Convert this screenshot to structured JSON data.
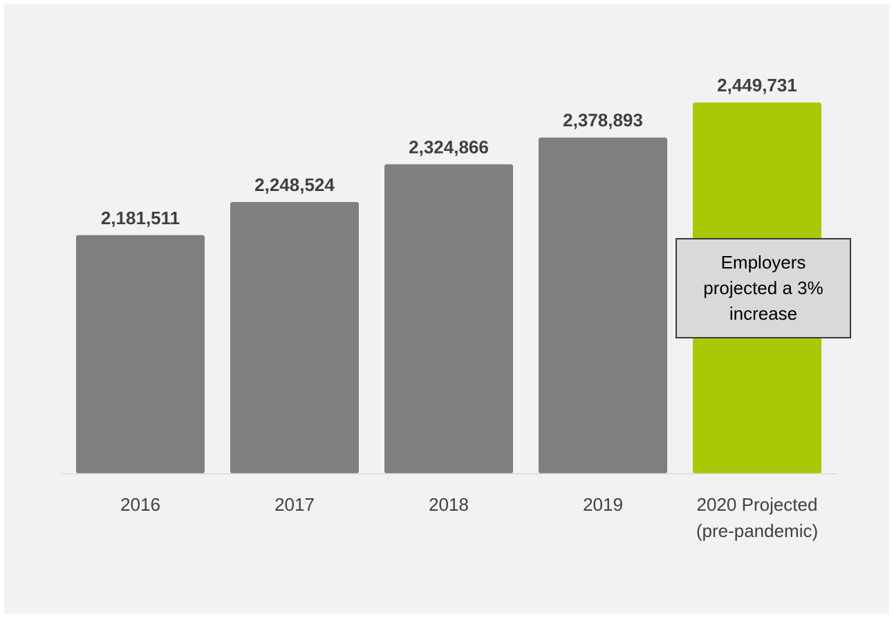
{
  "chart_data": {
    "type": "bar",
    "title": "",
    "xlabel": "",
    "ylabel": "",
    "categories": [
      "2016",
      "2017",
      "2018",
      "2019",
      "2020 Projected (pre-pandemic)"
    ],
    "category_lines": [
      [
        "2016"
      ],
      [
        "2017"
      ],
      [
        "2018"
      ],
      [
        "2019"
      ],
      [
        "2020 Projected",
        "(pre-pandemic)"
      ]
    ],
    "values": [
      2181511,
      2248524,
      2324866,
      2378893,
      2449731
    ],
    "value_labels": [
      "2,181,511",
      "2,248,524",
      "2,324,866",
      "2,378,893",
      "2,449,731"
    ],
    "ylim": [
      1700000,
      2475000
    ],
    "grid": false,
    "legend": "none",
    "bar_colors": [
      "#7f7f7f",
      "#7f7f7f",
      "#7f7f7f",
      "#7f7f7f",
      "#a7c905"
    ],
    "annotation": {
      "text": "Employers projected a 3% increase",
      "lines": [
        "Employers",
        "projected a 3%",
        "increase"
      ]
    }
  },
  "colors": {
    "panel_background": "#f2f2f2",
    "axis_line": "#d9d9d9",
    "label_text": "#404040",
    "callout_fill": "#d9d9d9",
    "callout_border": "#3a3a3a"
  }
}
